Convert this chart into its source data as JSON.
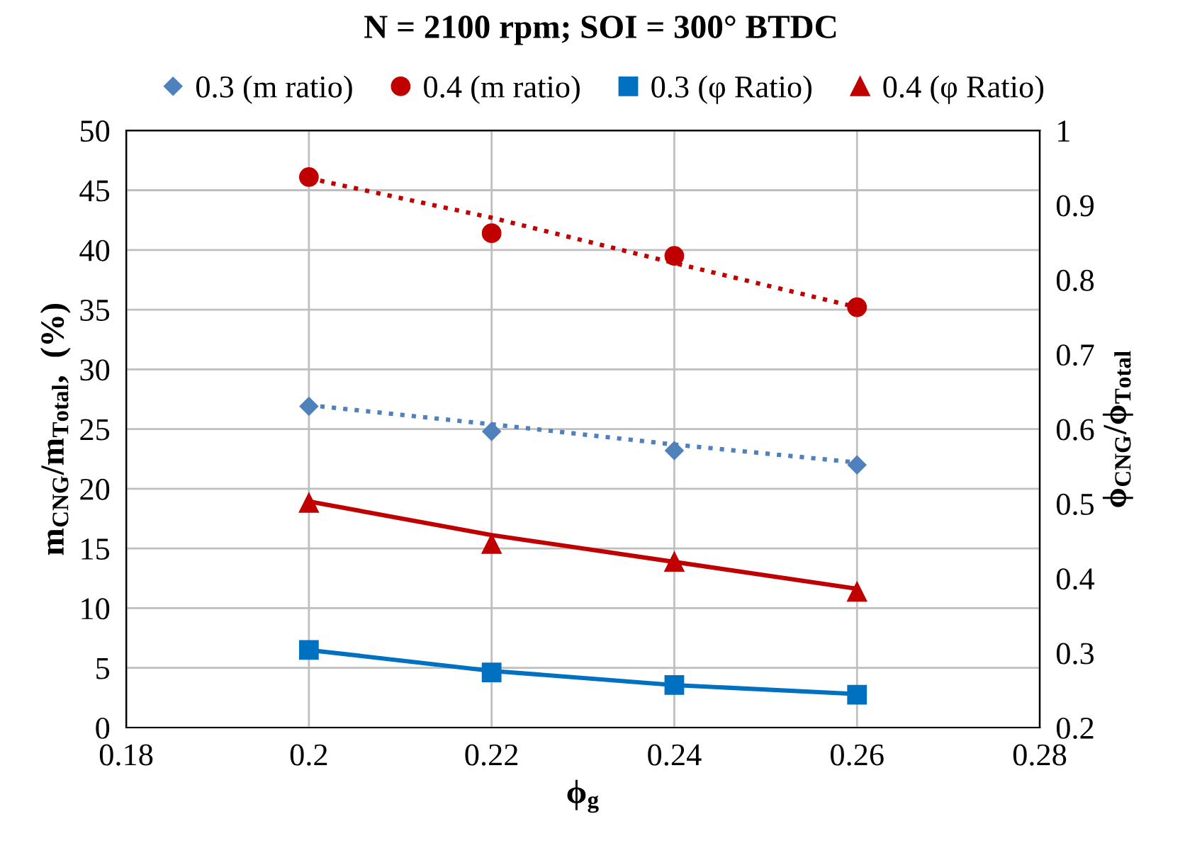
{
  "chart_data": {
    "type": "scatter",
    "title": "N = 2100 rpm; SOI = 300° BTDC",
    "xlabel": "ϕ$_{g}$",
    "ylabel": "m$_{CNG}$/m$_{Total}$,  (%)",
    "y2label": "ϕ$_{CNG}$/ϕ$_{Total}$",
    "xlim": [
      0.18,
      0.28
    ],
    "xticks": [
      0.18,
      0.2,
      0.22,
      0.24,
      0.26,
      0.28
    ],
    "ylim": [
      0,
      50
    ],
    "yticks": [
      0,
      5,
      10,
      15,
      20,
      25,
      30,
      35,
      40,
      45,
      50
    ],
    "y2lim": [
      0.2,
      1
    ],
    "y2ticks": [
      0.2,
      0.3,
      0.4,
      0.5,
      0.6,
      0.7,
      0.8,
      0.9,
      1
    ],
    "grid": true,
    "legend": "top",
    "series": [
      {
        "name": "0.3 (m ratio)",
        "marker": "diamond",
        "color": "#4f81bd",
        "x": [
          0.2,
          0.22,
          0.24,
          0.26
        ],
        "values": [
          26.9,
          24.8,
          23.2,
          22.0
        ]
      },
      {
        "name": "0.4 (m ratio)",
        "marker": "circle",
        "color": "#c00000",
        "x": [
          0.2,
          0.22,
          0.24,
          0.26
        ],
        "values": [
          46.1,
          41.4,
          39.5,
          35.2
        ]
      },
      {
        "name": "0.3 (φ Ratio)",
        "marker": "square",
        "axis": "y2",
        "color": "#0070c0",
        "x": [
          0.2,
          0.22,
          0.24,
          0.26
        ],
        "values": [
          0.304,
          0.274,
          0.257,
          0.244
        ]
      },
      {
        "name": "0.4 (φ Ratio)",
        "marker": "triangle",
        "axis": "y2",
        "color": "#c00000",
        "x": [
          0.2,
          0.22,
          0.24,
          0.26
        ],
        "values": [
          0.501,
          0.446,
          0.422,
          0.382
        ]
      },
      {
        "type": "line",
        "line_style": "dotted",
        "color": "#4f81bd",
        "x": [
          0.2,
          0.22,
          0.24,
          0.26
        ],
        "values": [
          27.0,
          25.4,
          23.7,
          22.2
        ]
      },
      {
        "type": "line",
        "line_style": "dotted",
        "color": "#c00000",
        "x": [
          0.2,
          0.22,
          0.24,
          0.26
        ],
        "values": [
          46.0,
          42.7,
          38.9,
          35.2
        ]
      },
      {
        "type": "line",
        "line_style": "solid",
        "axis": "y2",
        "color": "#0070c0",
        "x": [
          0.2,
          0.22,
          0.24,
          0.26
        ],
        "values": [
          0.304,
          0.276,
          0.257,
          0.245
        ]
      },
      {
        "type": "line",
        "line_style": "solid",
        "axis": "y2",
        "color": "#c00000",
        "x": [
          0.2,
          0.22,
          0.24,
          0.26
        ],
        "values": [
          0.503,
          0.458,
          0.422,
          0.386
        ]
      }
    ]
  }
}
